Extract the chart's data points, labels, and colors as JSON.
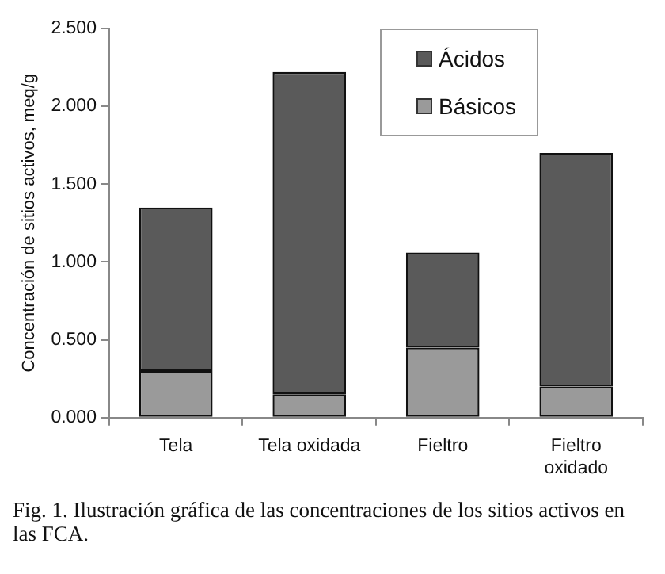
{
  "chart_data": {
    "type": "bar",
    "stacked": true,
    "ylabel": "Concentración de sitios activos, meq/g",
    "categories": [
      "Tela",
      "Tela oxidada",
      "Fieltro",
      "Fieltro oxidado"
    ],
    "series": [
      {
        "name": "Básicos",
        "color": "#9a9a9a",
        "values": [
          0.3,
          0.15,
          0.45,
          0.2
        ]
      },
      {
        "name": "Ácidos",
        "color": "#5a5a5a",
        "values": [
          1.05,
          2.07,
          0.61,
          1.5
        ]
      }
    ],
    "ylim": [
      0,
      2.5
    ],
    "yticks": [
      {
        "value": 0,
        "label": "0.000"
      },
      {
        "value": 0.5,
        "label": "0.500"
      },
      {
        "value": 1,
        "label": "1.000"
      },
      {
        "value": 1.5,
        "label": "1.500"
      },
      {
        "value": 2,
        "label": "2.000"
      },
      {
        "value": 2.5,
        "label": "2.500"
      }
    ],
    "grid": false,
    "legend": "top right",
    "annotations": [
      "Fig. 1. Ilustración gráfica de las concentraciones de los sitios activos en las FCA."
    ]
  }
}
